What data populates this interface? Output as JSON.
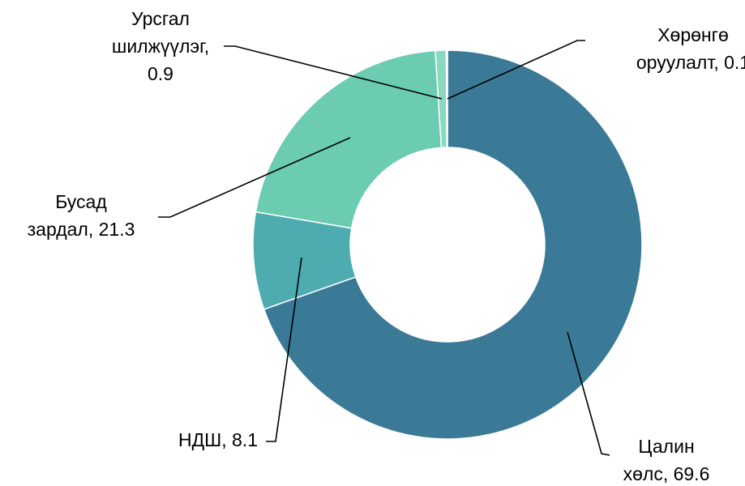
{
  "chart_data": {
    "type": "donut",
    "values": [
      69.6,
      8.1,
      21.3,
      0.9,
      0.1
    ],
    "value_labels": [
      [
        "Цалин",
        "хөлс, 69.6"
      ],
      [
        "НДШ, 8.1"
      ],
      [
        "Бусад",
        "зардал, 21.3"
      ],
      [
        "Урсгал",
        "шилжүүлэг,",
        "0.9"
      ],
      [
        "Хөрөнгө",
        "оруулалт, 0.1"
      ]
    ],
    "colors": [
      "#3a7a97",
      "#4eacb0",
      "#6bccb1",
      "#8ad8bd",
      "#2f6f8c"
    ]
  }
}
